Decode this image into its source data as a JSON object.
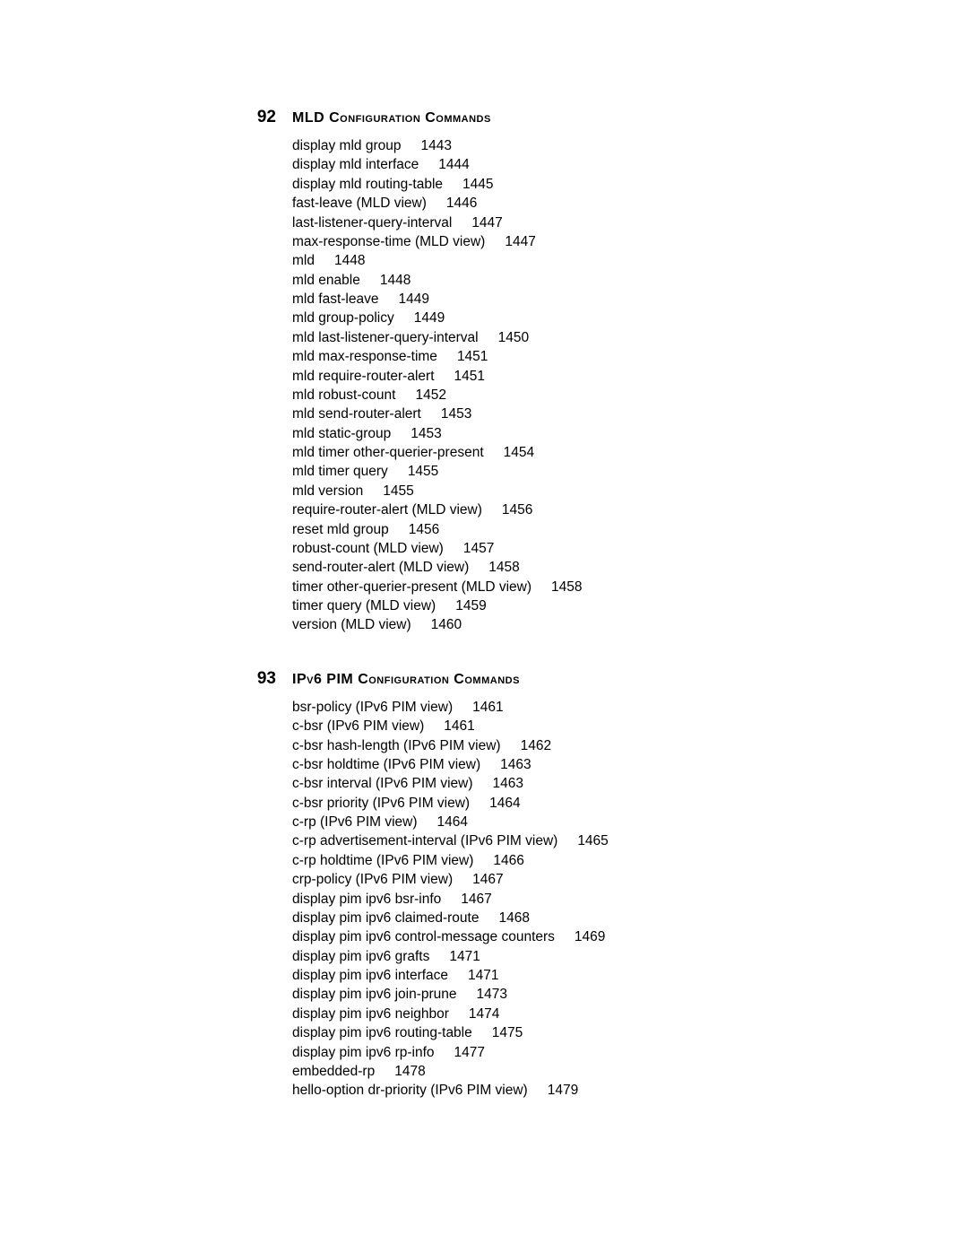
{
  "sections": [
    {
      "number": "92",
      "title": "MLD Configuration Commands",
      "items": [
        {
          "label": "display mld group",
          "page": "1443"
        },
        {
          "label": "display mld interface",
          "page": "1444"
        },
        {
          "label": "display mld routing-table",
          "page": "1445"
        },
        {
          "label": "fast-leave (MLD view)",
          "page": "1446"
        },
        {
          "label": "last-listener-query-interval",
          "page": "1447"
        },
        {
          "label": "max-response-time (MLD view)",
          "page": "1447"
        },
        {
          "label": "mld",
          "page": "1448"
        },
        {
          "label": "mld enable",
          "page": "1448"
        },
        {
          "label": "mld fast-leave",
          "page": "1449"
        },
        {
          "label": "mld group-policy",
          "page": "1449"
        },
        {
          "label": "mld last-listener-query-interval",
          "page": "1450"
        },
        {
          "label": "mld max-response-time",
          "page": "1451"
        },
        {
          "label": "mld require-router-alert",
          "page": "1451"
        },
        {
          "label": "mld robust-count",
          "page": "1452"
        },
        {
          "label": "mld send-router-alert",
          "page": "1453"
        },
        {
          "label": "mld static-group",
          "page": "1453"
        },
        {
          "label": "mld timer other-querier-present",
          "page": "1454"
        },
        {
          "label": "mld timer query",
          "page": "1455"
        },
        {
          "label": "mld version",
          "page": "1455"
        },
        {
          "label": "require-router-alert (MLD view)",
          "page": "1456"
        },
        {
          "label": "reset mld group",
          "page": "1456"
        },
        {
          "label": "robust-count (MLD view)",
          "page": "1457"
        },
        {
          "label": "send-router-alert (MLD view)",
          "page": "1458"
        },
        {
          "label": "timer other-querier-present (MLD view)",
          "page": "1458"
        },
        {
          "label": "timer query (MLD view)",
          "page": "1459"
        },
        {
          "label": "version (MLD view)",
          "page": "1460"
        }
      ]
    },
    {
      "number": "93",
      "title": "IPv6 PIM Configuration Commands",
      "items": [
        {
          "label": "bsr-policy (IPv6 PIM view)",
          "page": "1461"
        },
        {
          "label": "c-bsr (IPv6 PIM view)",
          "page": "1461"
        },
        {
          "label": "c-bsr hash-length (IPv6 PIM view)",
          "page": "1462"
        },
        {
          "label": "c-bsr holdtime (IPv6 PIM view)",
          "page": "1463"
        },
        {
          "label": "c-bsr interval (IPv6 PIM view)",
          "page": "1463"
        },
        {
          "label": "c-bsr priority (IPv6 PIM view)",
          "page": "1464"
        },
        {
          "label": "c-rp (IPv6 PIM view)",
          "page": "1464"
        },
        {
          "label": "c-rp advertisement-interval (IPv6 PIM view)",
          "page": "1465"
        },
        {
          "label": "c-rp holdtime (IPv6 PIM view)",
          "page": "1466"
        },
        {
          "label": "crp-policy (IPv6 PIM view)",
          "page": "1467"
        },
        {
          "label": "display pim ipv6 bsr-info",
          "page": "1467"
        },
        {
          "label": "display pim ipv6 claimed-route",
          "page": "1468"
        },
        {
          "label": "display pim ipv6 control-message counters",
          "page": "1469"
        },
        {
          "label": "display pim ipv6 grafts",
          "page": "1471"
        },
        {
          "label": "display pim ipv6 interface",
          "page": "1471"
        },
        {
          "label": "display pim ipv6 join-prune",
          "page": "1473"
        },
        {
          "label": "display pim ipv6 neighbor",
          "page": "1474"
        },
        {
          "label": "display pim ipv6 routing-table",
          "page": "1475"
        },
        {
          "label": "display pim ipv6 rp-info",
          "page": "1477"
        },
        {
          "label": "embedded-rp",
          "page": "1478"
        },
        {
          "label": "hello-option dr-priority (IPv6 PIM view)",
          "page": "1479"
        }
      ]
    }
  ]
}
